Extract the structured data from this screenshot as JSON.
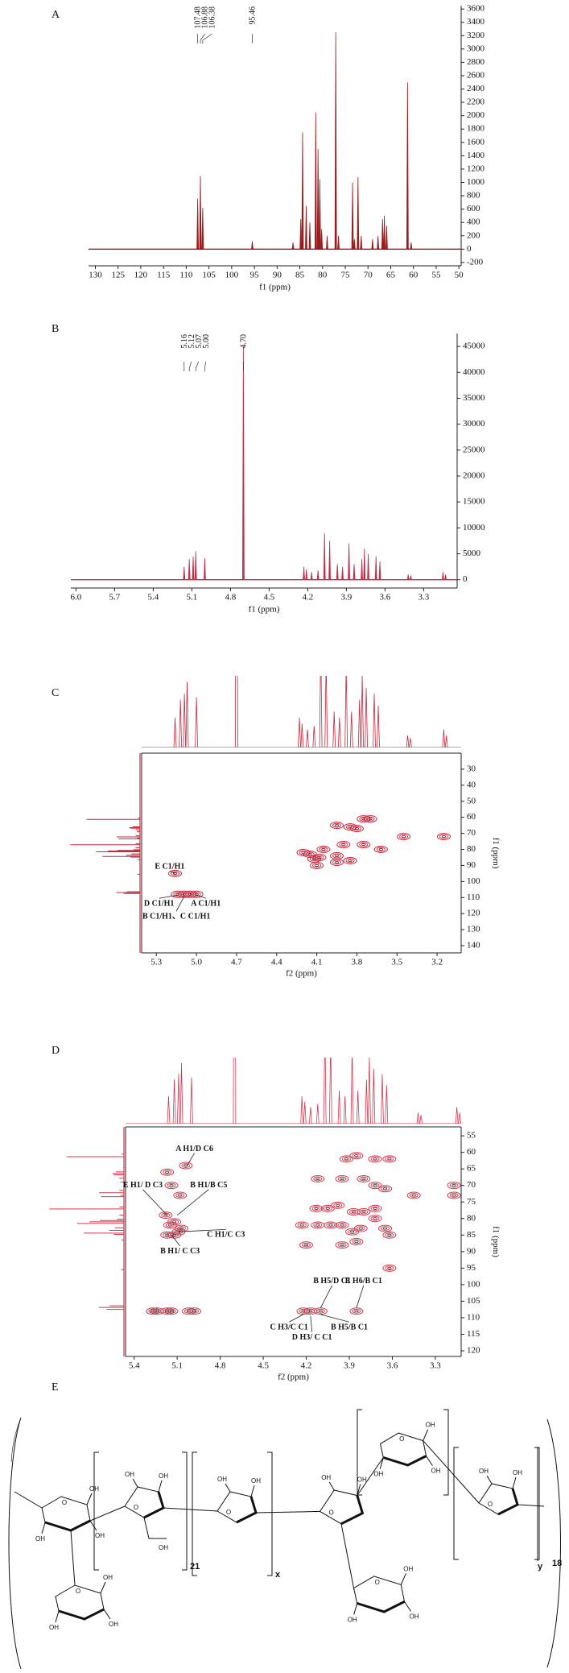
{
  "chart_data": [
    {
      "type": "spectrum",
      "title": "A",
      "xlabel": "f1 (ppm)",
      "color": "#9b1c1c",
      "x": [
        107.48,
        106.88,
        106.38,
        95.46,
        86.5,
        84.8,
        84.4,
        83.6,
        82.8,
        81.5,
        81.0,
        80.6,
        80.2,
        79.0,
        77.1,
        76.5,
        73.4,
        73.0,
        72.2,
        71.5,
        69.0,
        67.8,
        66.8,
        66.4,
        65.9,
        61.3,
        60.5
      ],
      "values": [
        760,
        1100,
        620,
        120,
        100,
        450,
        1750,
        650,
        400,
        2050,
        1500,
        1050,
        300,
        200,
        3250,
        200,
        1000,
        150,
        1080,
        200,
        150,
        200,
        450,
        500,
        350,
        2500,
        100
      ],
      "peak_labels": [
        107.48,
        106.88,
        106.38,
        95.46
      ],
      "xlim": [
        131.5,
        49.5
      ],
      "xticks": [
        130,
        125,
        120,
        115,
        110,
        105,
        100,
        95,
        90,
        85,
        80,
        75,
        70,
        65,
        60,
        55,
        50
      ],
      "ylim": [
        -250,
        3650
      ],
      "yticks": [
        -200,
        0,
        200,
        400,
        600,
        800,
        1000,
        1200,
        1400,
        1600,
        1800,
        2000,
        2200,
        2400,
        2600,
        2800,
        3000,
        3200,
        3400,
        3600
      ]
    },
    {
      "type": "spectrum",
      "title": "B",
      "xlabel": "f1 (ppm)",
      "color": "#c0304a",
      "x": [
        5.16,
        5.12,
        5.09,
        5.07,
        5.0,
        4.7,
        4.23,
        4.21,
        4.17,
        4.12,
        4.07,
        4.03,
        3.97,
        3.93,
        3.88,
        3.84,
        3.78,
        3.76,
        3.73,
        3.67,
        3.64,
        3.42,
        3.4,
        3.15,
        3.13
      ],
      "values": [
        2500,
        4000,
        4500,
        5500,
        4200,
        45000,
        2500,
        2000,
        1500,
        1800,
        9000,
        7500,
        3000,
        2500,
        7000,
        3000,
        4000,
        6000,
        5000,
        4500,
        3500,
        1000,
        800,
        1500,
        1000
      ],
      "peak_labels": [
        5.16,
        5.12,
        5.07,
        {
          "value": 5,
          "label": "5.00"
        },
        {
          "value": 4.7,
          "label": "4.70"
        }
      ],
      "xlim": [
        6.04,
        3.04
      ],
      "xticks": [
        {
          "value": 6,
          "label": "6.0"
        },
        5.7,
        5.4,
        5.1,
        4.8,
        4.5,
        4.2,
        3.9,
        3.6,
        3.3
      ],
      "ylim": [
        -1600,
        47500
      ],
      "yticks": [
        0,
        5000,
        10000,
        15000,
        20000,
        25000,
        30000,
        35000,
        40000,
        45000
      ]
    },
    {
      "type": "contour",
      "title": "C",
      "xlabel": "f2 (ppm)",
      "ylabel": "f1 (ppm)",
      "color": "#c8283c",
      "x": [
        5.16,
        5.14,
        5.09,
        5.05,
        5.0,
        3.75,
        3.7,
        3.95,
        3.85,
        3.8,
        3.45,
        3.15,
        3.9,
        3.75,
        4.05,
        4.2,
        4.15,
        4.08,
        4.12,
        3.95,
        4.1,
        3.95,
        3.85,
        3.62
      ],
      "y": [
        95,
        108,
        108,
        108,
        108,
        61,
        61,
        65,
        66,
        67,
        72,
        72,
        77,
        77,
        80,
        82,
        83,
        85,
        86,
        84,
        90,
        88,
        87,
        80
      ],
      "annotations": [
        "E C1/H1",
        "D C1/H1",
        "A C1/H1",
        "B C1/H1、C C1/H1"
      ],
      "xlim": [
        5.41,
        3.02
      ],
      "xticks": [
        5.3,
        {
          "value": 5,
          "label": "5.0"
        },
        4.7,
        4.4,
        4.1,
        3.8,
        3.5,
        3.2
      ],
      "ylim": [
        20,
        144.5
      ],
      "yticks": [
        30,
        40,
        50,
        60,
        70,
        80,
        90,
        100,
        110,
        120,
        130,
        140
      ]
    },
    {
      "type": "contour",
      "title": "D",
      "xlabel": "f2 (ppm)",
      "ylabel": "f1 (ppm)",
      "color": "#d03a4e",
      "x": [
        5.17,
        5.04,
        5.14,
        5.08,
        5.18,
        5.15,
        5.12,
        5.17,
        5.09,
        5.07,
        5.12,
        5.27,
        5.24,
        5.17,
        5.14,
        5.02,
        4.98,
        3.85,
        3.92,
        3.72,
        3.62,
        4.12,
        3.95,
        3.8,
        3.72,
        3.65,
        3.45,
        3.17,
        3.17,
        4.13,
        4.05,
        3.98,
        3.87,
        3.8,
        3.72,
        4.23,
        4.12,
        4.03,
        3.95,
        3.88,
        3.82,
        3.72,
        3.65,
        4.2,
        3.95,
        3.85,
        3.62,
        3.62,
        4.22,
        4.17,
        4.1,
        3.85
      ],
      "y": [
        66,
        64,
        70,
        73,
        79,
        82,
        81,
        85,
        84,
        83,
        85,
        108,
        108,
        108,
        108,
        108,
        108,
        61,
        62,
        62,
        62,
        68,
        68,
        68,
        70,
        71,
        73,
        70,
        73,
        77,
        77,
        76,
        78,
        78,
        77,
        82,
        82,
        82,
        82,
        84,
        83,
        80,
        83,
        88,
        88,
        87,
        85,
        95,
        108,
        108,
        108,
        108
      ],
      "annotations": [
        "A H1/D C6",
        "E H1/ D C3",
        "B H1/B C5",
        "C H1/C C3",
        "B H1/ C C3",
        "B H5/D C1",
        "E H6/B C1",
        "C H3/C C1",
        "D H3/ C C1",
        "B H5/B C1"
      ],
      "xlim": [
        5.46,
        3.12
      ],
      "xticks": [
        5.4,
        5.1,
        4.8,
        4.5,
        4.2,
        3.9,
        3.6,
        3.3
      ],
      "ylim": [
        52.3,
        121.7
      ],
      "yticks": [
        55,
        60,
        65,
        70,
        75,
        80,
        85,
        90,
        95,
        100,
        105,
        110,
        115,
        120
      ]
    }
  ],
  "structure": {
    "title": "E",
    "oh": "OH",
    "o": "O",
    "subscripts": [
      "21",
      "x",
      "y",
      "18"
    ]
  }
}
